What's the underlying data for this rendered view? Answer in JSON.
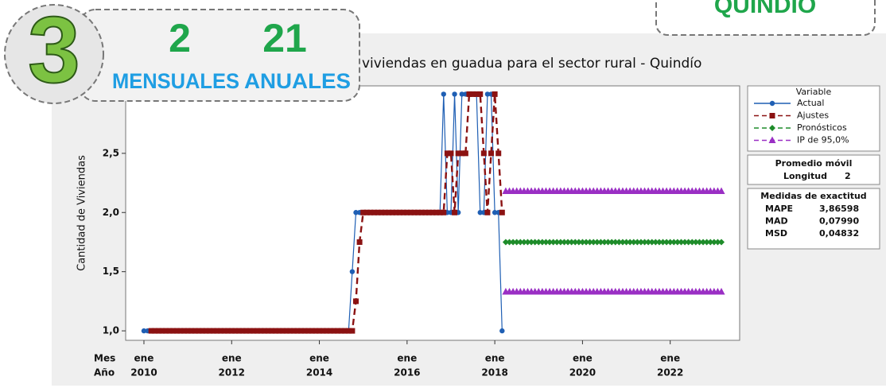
{
  "overlay": {
    "badge": "3",
    "monthly_value": "2",
    "monthly_label": "MENSUALES",
    "annual_value": "21",
    "annual_label": "ANUALES",
    "region": "QUINDÍO"
  },
  "chart_data": {
    "type": "line",
    "title": "viviendas en guadua para el sector rural - Quindío",
    "y_label": "Cantidad de Viviendas",
    "x_row_labels": [
      "Mes",
      "Año"
    ],
    "x": [
      "2010-01",
      "2010-02",
      "2010-03",
      "2010-04",
      "2010-05",
      "2010-06",
      "2010-07",
      "2010-08",
      "2010-09",
      "2010-10",
      "2010-11",
      "2010-12",
      "2011-01",
      "2011-02",
      "2011-03",
      "2011-04",
      "2011-05",
      "2011-06",
      "2011-07",
      "2011-08",
      "2011-09",
      "2011-10",
      "2011-11",
      "2011-12",
      "2012-01",
      "2012-02",
      "2012-03",
      "2012-04",
      "2012-05",
      "2012-06",
      "2012-07",
      "2012-08",
      "2012-09",
      "2012-10",
      "2012-11",
      "2012-12",
      "2013-01",
      "2013-02",
      "2013-03",
      "2013-04",
      "2013-05",
      "2013-06",
      "2013-07",
      "2013-08",
      "2013-09",
      "2013-10",
      "2013-11",
      "2013-12",
      "2014-01",
      "2014-02",
      "2014-03",
      "2014-04",
      "2014-05",
      "2014-06",
      "2014-07",
      "2014-08",
      "2014-09",
      "2014-10",
      "2014-11",
      "2014-12",
      "2015-01",
      "2015-02",
      "2015-03",
      "2015-04",
      "2015-05",
      "2015-06",
      "2015-07",
      "2015-08",
      "2015-09",
      "2015-10",
      "2015-11",
      "2015-12",
      "2016-01",
      "2016-02",
      "2016-03",
      "2016-04",
      "2016-05",
      "2016-06",
      "2016-07",
      "2016-08",
      "2016-09",
      "2016-10",
      "2016-11",
      "2016-12",
      "2017-01",
      "2017-02",
      "2017-03",
      "2017-04",
      "2017-05",
      "2017-06",
      "2017-07",
      "2017-08",
      "2017-09",
      "2017-10",
      "2017-11",
      "2017-12",
      "2018-01",
      "2018-02",
      "2018-03",
      "2018-04",
      "2018-05",
      "2018-06",
      "2018-07",
      "2018-08",
      "2018-09",
      "2018-10",
      "2018-11",
      "2018-12",
      "2019-01",
      "2019-02",
      "2019-03",
      "2019-04",
      "2019-05",
      "2019-06",
      "2019-07",
      "2019-08",
      "2019-09",
      "2019-10",
      "2019-11",
      "2019-12",
      "2020-01",
      "2020-02",
      "2020-03",
      "2020-04",
      "2020-05",
      "2020-06",
      "2020-07",
      "2020-08",
      "2020-09",
      "2020-10",
      "2020-11",
      "2020-12",
      "2021-01",
      "2021-02",
      "2021-03",
      "2021-04",
      "2021-05",
      "2021-06",
      "2021-07",
      "2021-08",
      "2021-09",
      "2021-10",
      "2021-11",
      "2021-12",
      "2022-01",
      "2022-02",
      "2022-03",
      "2022-04",
      "2022-05",
      "2022-06",
      "2022-07",
      "2022-08",
      "2022-09",
      "2022-10",
      "2022-11",
      "2022-12",
      "2023-01",
      "2023-02",
      "2023-03"
    ],
    "series": [
      {
        "name": "Actual",
        "color": "#1f5fb4",
        "line_style": "solid",
        "marker": "circle",
        "values": [
          1,
          1,
          1,
          1,
          1,
          1,
          1,
          1,
          1,
          1,
          1,
          1,
          1,
          1,
          1,
          1,
          1,
          1,
          1,
          1,
          1,
          1,
          1,
          1,
          1,
          1,
          1,
          1,
          1,
          1,
          1,
          1,
          1,
          1,
          1,
          1,
          1,
          1,
          1,
          1,
          1,
          1,
          1,
          1,
          1,
          1,
          1,
          1,
          1,
          1,
          1,
          1,
          1,
          1,
          1,
          1,
          1,
          1.5,
          2,
          2,
          2,
          2,
          2,
          2,
          2,
          2,
          2,
          2,
          2,
          2,
          2,
          2,
          2,
          2,
          2,
          2,
          2,
          2,
          2,
          2,
          2,
          2,
          3,
          2,
          2,
          3,
          2,
          3,
          3,
          3,
          3,
          3,
          2,
          2,
          3,
          3,
          2,
          2,
          1,
          null,
          null,
          null,
          null,
          null,
          null,
          null,
          null,
          null,
          null,
          null,
          null,
          null,
          null,
          null,
          null,
          null,
          null,
          null,
          null,
          null,
          null,
          null,
          null,
          null,
          null,
          null,
          null,
          null,
          null,
          null,
          null,
          null,
          null,
          null,
          null,
          null,
          null,
          null,
          null,
          null,
          null,
          null,
          null,
          null,
          null,
          null,
          null,
          null,
          null,
          null,
          null,
          null,
          null,
          null,
          null,
          null,
          null,
          null,
          null
        ]
      },
      {
        "name": "Ajustes",
        "color": "#8b1212",
        "line_style": "dashed",
        "marker": "square",
        "values": [
          null,
          null,
          1,
          1,
          1,
          1,
          1,
          1,
          1,
          1,
          1,
          1,
          1,
          1,
          1,
          1,
          1,
          1,
          1,
          1,
          1,
          1,
          1,
          1,
          1,
          1,
          1,
          1,
          1,
          1,
          1,
          1,
          1,
          1,
          1,
          1,
          1,
          1,
          1,
          1,
          1,
          1,
          1,
          1,
          1,
          1,
          1,
          1,
          1,
          1,
          1,
          1,
          1,
          1,
          1,
          1,
          1,
          1,
          1.25,
          1.75,
          2,
          2,
          2,
          2,
          2,
          2,
          2,
          2,
          2,
          2,
          2,
          2,
          2,
          2,
          2,
          2,
          2,
          2,
          2,
          2,
          2,
          2,
          2,
          2.5,
          2.5,
          2,
          2.5,
          2.5,
          2.5,
          3,
          3,
          3,
          3,
          2.5,
          2,
          2.5,
          3,
          2.5,
          2,
          null,
          null,
          null,
          null,
          null,
          null,
          null,
          null,
          null,
          null,
          null,
          null,
          null,
          null,
          null,
          null,
          null,
          null,
          null,
          null,
          null,
          null,
          null,
          null,
          null,
          null,
          null,
          null,
          null,
          null,
          null,
          null,
          null,
          null,
          null,
          null,
          null,
          null,
          null,
          null,
          null,
          null,
          null,
          null,
          null,
          null,
          null,
          null,
          null,
          null,
          null,
          null,
          null,
          null,
          null,
          null,
          null,
          null,
          null,
          null
        ]
      },
      {
        "name": "Pronósticos",
        "color": "#1e8c2a",
        "line_style": "dashed",
        "marker": "diamond",
        "values": [
          null,
          null,
          null,
          null,
          null,
          null,
          null,
          null,
          null,
          null,
          null,
          null,
          null,
          null,
          null,
          null,
          null,
          null,
          null,
          null,
          null,
          null,
          null,
          null,
          null,
          null,
          null,
          null,
          null,
          null,
          null,
          null,
          null,
          null,
          null,
          null,
          null,
          null,
          null,
          null,
          null,
          null,
          null,
          null,
          null,
          null,
          null,
          null,
          null,
          null,
          null,
          null,
          null,
          null,
          null,
          null,
          null,
          null,
          null,
          null,
          null,
          null,
          null,
          null,
          null,
          null,
          null,
          null,
          null,
          null,
          null,
          null,
          null,
          null,
          null,
          null,
          null,
          null,
          null,
          null,
          null,
          null,
          null,
          null,
          null,
          null,
          null,
          null,
          null,
          null,
          null,
          null,
          null,
          null,
          null,
          null,
          null,
          null,
          null,
          1.75,
          1.75,
          1.75,
          1.75,
          1.75,
          1.75,
          1.75,
          1.75,
          1.75,
          1.75,
          1.75,
          1.75,
          1.75,
          1.75,
          1.75,
          1.75,
          1.75,
          1.75,
          1.75,
          1.75,
          1.75,
          1.75,
          1.75,
          1.75,
          1.75,
          1.75,
          1.75,
          1.75,
          1.75,
          1.75,
          1.75,
          1.75,
          1.75,
          1.75,
          1.75,
          1.75,
          1.75,
          1.75,
          1.75,
          1.75,
          1.75,
          1.75,
          1.75,
          1.75,
          1.75,
          1.75,
          1.75,
          1.75,
          1.75,
          1.75,
          1.75,
          1.75,
          1.75,
          1.75,
          1.75,
          1.75,
          1.75,
          1.75,
          1.75,
          1.75
        ]
      },
      {
        "name": "IP de 95,0%",
        "color": "#9a2fc4",
        "line_style": "dashed",
        "marker": "triangle",
        "values": [
          null,
          null,
          null,
          null,
          null,
          null,
          null,
          null,
          null,
          null,
          null,
          null,
          null,
          null,
          null,
          null,
          null,
          null,
          null,
          null,
          null,
          null,
          null,
          null,
          null,
          null,
          null,
          null,
          null,
          null,
          null,
          null,
          null,
          null,
          null,
          null,
          null,
          null,
          null,
          null,
          null,
          null,
          null,
          null,
          null,
          null,
          null,
          null,
          null,
          null,
          null,
          null,
          null,
          null,
          null,
          null,
          null,
          null,
          null,
          null,
          null,
          null,
          null,
          null,
          null,
          null,
          null,
          null,
          null,
          null,
          null,
          null,
          null,
          null,
          null,
          null,
          null,
          null,
          null,
          null,
          null,
          null,
          null,
          null,
          null,
          null,
          null,
          null,
          null,
          null,
          null,
          null,
          null,
          null,
          null,
          null,
          null,
          null,
          null,
          2.18,
          2.18,
          2.18,
          2.18,
          2.18,
          2.18,
          2.18,
          2.18,
          2.18,
          2.18,
          2.18,
          2.18,
          2.18,
          2.18,
          2.18,
          2.18,
          2.18,
          2.18,
          2.18,
          2.18,
          2.18,
          2.18,
          2.18,
          2.18,
          2.18,
          2.18,
          2.18,
          2.18,
          2.18,
          2.18,
          2.18,
          2.18,
          2.18,
          2.18,
          2.18,
          2.18,
          2.18,
          2.18,
          2.18,
          2.18,
          2.18,
          2.18,
          2.18,
          2.18,
          2.18,
          2.18,
          2.18,
          2.18,
          2.18,
          2.18,
          2.18,
          2.18,
          2.18,
          2.18,
          2.18,
          2.18,
          2.18,
          2.18,
          2.18,
          2.18
        ],
        "lower": [
          null,
          null,
          null,
          null,
          null,
          null,
          null,
          null,
          null,
          null,
          null,
          null,
          null,
          null,
          null,
          null,
          null,
          null,
          null,
          null,
          null,
          null,
          null,
          null,
          null,
          null,
          null,
          null,
          null,
          null,
          null,
          null,
          null,
          null,
          null,
          null,
          null,
          null,
          null,
          null,
          null,
          null,
          null,
          null,
          null,
          null,
          null,
          null,
          null,
          null,
          null,
          null,
          null,
          null,
          null,
          null,
          null,
          null,
          null,
          null,
          null,
          null,
          null,
          null,
          null,
          null,
          null,
          null,
          null,
          null,
          null,
          null,
          null,
          null,
          null,
          null,
          null,
          null,
          null,
          null,
          null,
          null,
          null,
          null,
          null,
          null,
          null,
          null,
          null,
          null,
          null,
          null,
          null,
          null,
          null,
          null,
          null,
          null,
          null,
          1.33,
          1.33,
          1.33,
          1.33,
          1.33,
          1.33,
          1.33,
          1.33,
          1.33,
          1.33,
          1.33,
          1.33,
          1.33,
          1.33,
          1.33,
          1.33,
          1.33,
          1.33,
          1.33,
          1.33,
          1.33,
          1.33,
          1.33,
          1.33,
          1.33,
          1.33,
          1.33,
          1.33,
          1.33,
          1.33,
          1.33,
          1.33,
          1.33,
          1.33,
          1.33,
          1.33,
          1.33,
          1.33,
          1.33,
          1.33,
          1.33,
          1.33,
          1.33,
          1.33,
          1.33,
          1.33,
          1.33,
          1.33,
          1.33,
          1.33,
          1.33,
          1.33,
          1.33,
          1.33,
          1.33,
          1.33,
          1.33,
          1.33,
          1.33,
          1.33
        ]
      }
    ],
    "xlim": [
      "2009-08",
      "2023-08"
    ],
    "xticks": [
      {
        "value": "2010-01",
        "label": [
          "ene",
          "2010"
        ]
      },
      {
        "value": "2012-01",
        "label": [
          "ene",
          "2012"
        ]
      },
      {
        "value": "2014-01",
        "label": [
          "ene",
          "2014"
        ]
      },
      {
        "value": "2016-01",
        "label": [
          "ene",
          "2016"
        ]
      },
      {
        "value": "2018-01",
        "label": [
          "ene",
          "2018"
        ]
      },
      {
        "value": "2020-01",
        "label": [
          "ene",
          "2020"
        ]
      },
      {
        "value": "2022-01",
        "label": [
          "ene",
          "2022"
        ]
      }
    ],
    "ylim": [
      0.92,
      3.07
    ],
    "yticks": [
      {
        "value": 1,
        "label": "1,0"
      },
      {
        "value": 1.5,
        "label": "1,5"
      },
      {
        "value": 2,
        "label": "2,0"
      },
      {
        "value": 2.5,
        "label": "2,5"
      }
    ],
    "legend_title": "Variable",
    "method": {
      "title": "Promedio móvil",
      "length_label": "Longitud",
      "length": 2
    },
    "accuracy": {
      "title": "Medidas de exactitud",
      "rows": [
        [
          "MAPE",
          "3,86598"
        ],
        [
          "MAD",
          "0,07990"
        ],
        [
          "MSD",
          "0,04832"
        ]
      ]
    }
  }
}
